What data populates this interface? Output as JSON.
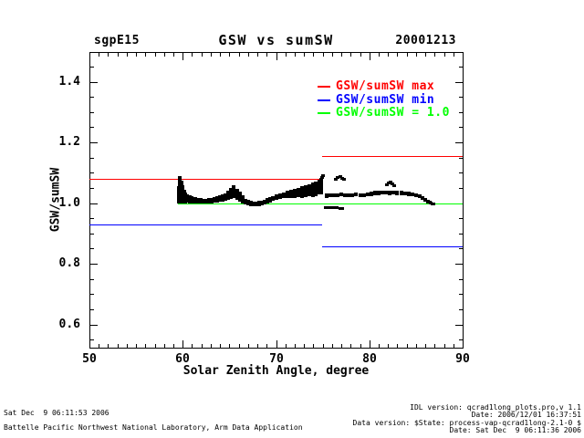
{
  "header": {
    "site": "sgpE15",
    "title": "GSW vs sumSW",
    "date": "20001213"
  },
  "axes": {
    "xlabel": "Solar Zenith Angle, degree",
    "ylabel": "GSW/sumSW"
  },
  "legend": [
    {
      "label": "GSW/sumSW max",
      "color": "#ff0000"
    },
    {
      "label": "GSW/sumSW min",
      "color": "#0000ff"
    },
    {
      "label": "GSW/sumSW = 1.0",
      "color": "#00ff00"
    }
  ],
  "footer_left": [
    "Sat Dec  9 06:11:53 2006",
    "Battelle Pacific Northwest National Laboratory, Arm Data Application"
  ],
  "footer_right": [
    "IDL version: qcrad1long_plots.pro,v 1.1",
    "Date: 2006/12/01 16:37:51",
    "Data version: $State: process-vap-qcrad1long-2.1-0 $",
    "Date: Sat Dec  9 06:11:36 2006"
  ],
  "chart_data": {
    "type": "scatter",
    "title": "GSW vs sumSW",
    "site_label": "sgpE15",
    "date_label": "20001213",
    "xlabel": "Solar Zenith Angle, degree",
    "ylabel": "GSW/sumSW",
    "xlim": [
      50,
      90
    ],
    "ylim": [
      0.52,
      1.5
    ],
    "x_major_ticks": [
      50,
      60,
      70,
      80,
      90
    ],
    "x_minor_step": 1,
    "y_major_ticks": [
      0.6,
      0.8,
      1.0,
      1.2,
      1.4
    ],
    "y_minor_step": 0.05,
    "grid": false,
    "legend_position": "top-right-inside",
    "reference_lines": [
      {
        "name": "GSW/sumSW max",
        "color": "#ff0000",
        "segments": [
          {
            "x": [
              50,
              74.9
            ],
            "y": 1.08
          },
          {
            "x": [
              74.9,
              90
            ],
            "y": 1.155
          }
        ]
      },
      {
        "name": "GSW/sumSW min",
        "color": "#0000ff",
        "segments": [
          {
            "x": [
              50,
              74.9
            ],
            "y": 0.93
          },
          {
            "x": [
              74.9,
              90
            ],
            "y": 0.857
          }
        ]
      },
      {
        "name": "GSW/sumSW = 1.0",
        "color": "#00ff00",
        "segments": [
          {
            "x": [
              59.5,
              90
            ],
            "y": 1.0
          }
        ]
      }
    ],
    "scatter_band": [
      [
        59.55,
        1.0,
        1.055
      ],
      [
        59.7,
        0.998,
        1.09
      ],
      [
        59.85,
        0.998,
        1.075
      ],
      [
        60.0,
        0.998,
        1.06
      ],
      [
        60.15,
        1.0,
        1.045
      ],
      [
        60.3,
        1.0,
        1.035
      ],
      [
        60.5,
        1.002,
        1.028
      ],
      [
        60.75,
        1.0,
        1.025
      ],
      [
        61.0,
        1.0,
        1.022
      ],
      [
        61.3,
        0.999,
        1.02
      ],
      [
        61.6,
        0.999,
        1.018
      ],
      [
        61.9,
        0.998,
        1.016
      ],
      [
        62.2,
        0.998,
        1.015
      ],
      [
        62.5,
        0.998,
        1.015
      ],
      [
        62.8,
        0.999,
        1.016
      ],
      [
        63.1,
        1.0,
        1.018
      ],
      [
        63.4,
        1.001,
        1.02
      ],
      [
        63.7,
        1.003,
        1.022
      ],
      [
        64.0,
        1.005,
        1.025
      ],
      [
        64.3,
        1.006,
        1.028
      ],
      [
        64.6,
        1.008,
        1.032
      ],
      [
        64.9,
        1.01,
        1.04
      ],
      [
        65.2,
        1.015,
        1.05
      ],
      [
        65.5,
        1.018,
        1.058
      ],
      [
        65.8,
        1.012,
        1.048
      ],
      [
        66.1,
        1.005,
        1.038
      ],
      [
        66.4,
        0.998,
        1.025
      ],
      [
        66.7,
        0.994,
        1.015
      ],
      [
        67.0,
        0.991,
        1.01
      ],
      [
        67.3,
        0.989,
        1.007
      ],
      [
        67.6,
        0.988,
        1.006
      ],
      [
        67.9,
        0.989,
        1.006
      ],
      [
        68.2,
        0.99,
        1.007
      ],
      [
        68.5,
        0.992,
        1.008
      ],
      [
        68.8,
        0.995,
        1.012
      ],
      [
        69.1,
        0.999,
        1.016
      ],
      [
        69.4,
        1.003,
        1.02
      ],
      [
        69.7,
        1.007,
        1.024
      ],
      [
        70.0,
        1.01,
        1.028
      ],
      [
        70.4,
        1.014,
        1.032
      ],
      [
        70.8,
        1.016,
        1.036
      ],
      [
        71.2,
        1.018,
        1.04
      ],
      [
        71.6,
        1.016,
        1.043
      ],
      [
        72.0,
        1.018,
        1.047
      ],
      [
        72.4,
        1.02,
        1.051
      ],
      [
        72.8,
        1.018,
        1.055
      ],
      [
        73.2,
        1.02,
        1.059
      ],
      [
        73.6,
        1.022,
        1.063
      ],
      [
        74.0,
        1.02,
        1.067
      ],
      [
        74.3,
        1.024,
        1.071
      ],
      [
        74.6,
        1.028,
        1.076
      ],
      [
        74.85,
        1.03,
        1.082
      ],
      [
        75.4,
        1.018,
        1.032
      ],
      [
        75.7,
        1.02,
        1.033
      ],
      [
        76.0,
        1.019,
        1.031
      ],
      [
        76.3,
        1.021,
        1.033
      ],
      [
        76.6,
        1.02,
        1.032
      ],
      [
        77.0,
        1.022,
        1.034
      ],
      [
        77.4,
        1.02,
        1.032
      ],
      [
        77.8,
        1.021,
        1.033
      ],
      [
        78.2,
        1.02,
        1.032
      ],
      [
        78.6,
        1.022,
        1.034
      ],
      [
        79.0,
        1.021,
        1.033
      ],
      [
        79.4,
        1.02,
        1.032
      ],
      [
        79.8,
        1.022,
        1.035
      ],
      [
        80.2,
        1.024,
        1.038
      ],
      [
        80.6,
        1.026,
        1.04
      ],
      [
        81.0,
        1.027,
        1.041
      ],
      [
        81.4,
        1.028,
        1.042
      ],
      [
        81.8,
        1.028,
        1.042
      ],
      [
        82.2,
        1.027,
        1.041
      ],
      [
        82.6,
        1.028,
        1.042
      ],
      [
        83.0,
        1.027,
        1.041
      ],
      [
        83.4,
        1.026,
        1.04
      ],
      [
        83.8,
        1.025,
        1.039
      ],
      [
        84.2,
        1.024,
        1.038
      ],
      [
        84.6,
        1.022,
        1.036
      ],
      [
        85.0,
        1.02,
        1.033
      ],
      [
        85.4,
        1.018,
        1.03
      ],
      [
        85.7,
        1.012,
        1.024
      ],
      [
        86.0,
        1.005,
        1.017
      ],
      [
        86.3,
        0.999,
        1.01
      ],
      [
        86.55,
        0.997,
        1.006
      ],
      [
        86.8,
        0.996,
        1.003
      ],
      [
        75.35,
        0.98,
        0.988
      ],
      [
        75.65,
        0.98,
        0.988
      ],
      [
        75.95,
        0.98,
        0.988
      ],
      [
        76.25,
        0.981,
        0.989
      ],
      [
        76.55,
        0.98,
        0.988
      ],
      [
        76.85,
        0.98,
        0.987
      ],
      [
        77.1,
        0.981,
        0.987
      ]
    ],
    "scatter_points": [
      [
        74.95,
        1.086
      ],
      [
        75.05,
        1.091
      ],
      [
        76.45,
        1.079
      ],
      [
        76.65,
        1.085
      ],
      [
        76.85,
        1.088
      ],
      [
        77.05,
        1.083
      ],
      [
        77.3,
        1.079
      ],
      [
        81.85,
        1.061
      ],
      [
        82.05,
        1.067
      ],
      [
        82.25,
        1.07
      ],
      [
        82.45,
        1.066
      ],
      [
        82.65,
        1.059
      ],
      [
        86.5,
        1.005
      ],
      [
        86.85,
        0.998
      ]
    ]
  }
}
